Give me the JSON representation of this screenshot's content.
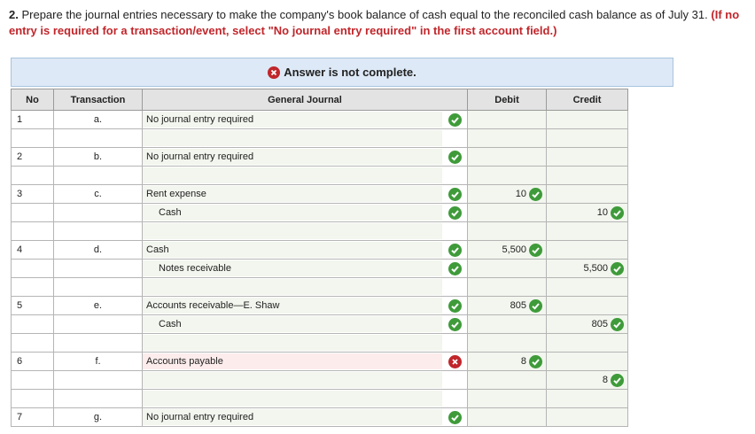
{
  "question": {
    "number": "2.",
    "text": "Prepare the journal entries necessary to make the company's book balance of cash equal to the reconciled cash balance as of July 31.",
    "instruction": "(If no entry is required for a transaction/event, select \"No journal entry required\" in the first account field.)"
  },
  "banner": "Answer is not complete.",
  "table": {
    "headers": [
      "No",
      "Transaction",
      "General Journal",
      "Debit",
      "Credit"
    ],
    "entries": [
      {
        "no": "1",
        "transaction": "a.",
        "lines": [
          {
            "account": "No journal entry required",
            "mark": "correct"
          }
        ]
      },
      {
        "no": "2",
        "transaction": "b.",
        "lines": [
          {
            "account": "No journal entry required",
            "mark": "correct"
          }
        ]
      },
      {
        "no": "3",
        "transaction": "c.",
        "lines": [
          {
            "account": "Rent expense",
            "mark": "correct",
            "debit": "10"
          },
          {
            "account": "Cash",
            "mark": "correct",
            "credit": "10"
          }
        ]
      },
      {
        "no": "4",
        "transaction": "d.",
        "lines": [
          {
            "account": "Cash",
            "mark": "correct",
            "debit": "5,500"
          },
          {
            "account": "Notes receivable",
            "mark": "correct",
            "credit": "5,500"
          }
        ]
      },
      {
        "no": "5",
        "transaction": "e.",
        "lines": [
          {
            "account": "Accounts receivable—E. Shaw",
            "mark": "correct",
            "debit": "805"
          },
          {
            "account": "Cash",
            "mark": "correct",
            "credit": "805"
          }
        ]
      },
      {
        "no": "6",
        "transaction": "f.",
        "lines": [
          {
            "account": "Accounts payable",
            "mark": "incorrect",
            "debit": "8"
          },
          {
            "credit": "8"
          }
        ]
      },
      {
        "no": "7",
        "transaction": "g.",
        "lines": [
          {
            "account": "No journal entry required",
            "mark": "correct"
          }
        ]
      }
    ]
  }
}
